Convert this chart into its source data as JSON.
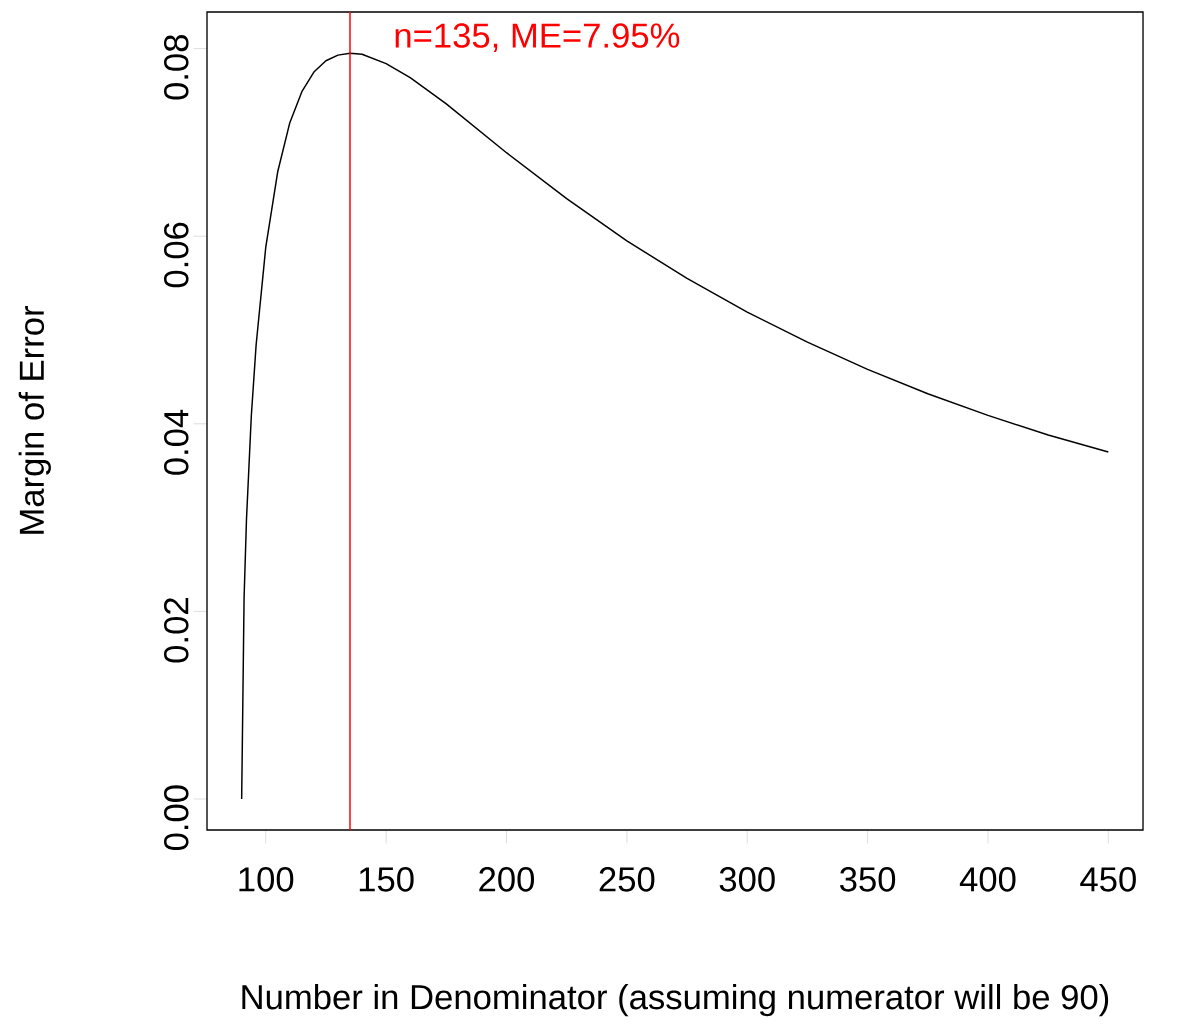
{
  "chart_data": {
    "type": "line",
    "xlabel": "Number in Denominator (assuming numerator will be 90)",
    "ylabel": "Margin of Error",
    "x": [
      90,
      91,
      92,
      94,
      96,
      100,
      105,
      110,
      115,
      120,
      125,
      130,
      135,
      140,
      150,
      160,
      175,
      200,
      225,
      250,
      275,
      300,
      325,
      350,
      375,
      400,
      425,
      450
    ],
    "values": [
      0.0,
      0.0214,
      0.0298,
      0.0408,
      0.0484,
      0.0588,
      0.0669,
      0.0721,
      0.0754,
      0.0775,
      0.0787,
      0.0793,
      0.0795,
      0.0794,
      0.0784,
      0.0769,
      0.0741,
      0.0689,
      0.064,
      0.0595,
      0.0555,
      0.0519,
      0.0487,
      0.0458,
      0.0432,
      0.0409,
      0.0388,
      0.037
    ],
    "color": "#000000",
    "xlim": [
      75.6,
      464.4
    ],
    "ylim": [
      -0.0033,
      0.0839
    ],
    "xticks": [
      100,
      150,
      200,
      250,
      300,
      350,
      400,
      450
    ],
    "yticks": [
      {
        "value": 0,
        "label": "0.00"
      },
      {
        "value": 0.02,
        "label": "0.02"
      },
      {
        "value": 0.04,
        "label": "0.04"
      },
      {
        "value": 0.06,
        "label": "0.06"
      },
      {
        "value": 0.08,
        "label": "0.08"
      }
    ],
    "ref_lines": [
      {
        "axis": "x",
        "value": 135,
        "label": "n=135, ME=7.95%",
        "color": "#ff0000"
      }
    ]
  }
}
